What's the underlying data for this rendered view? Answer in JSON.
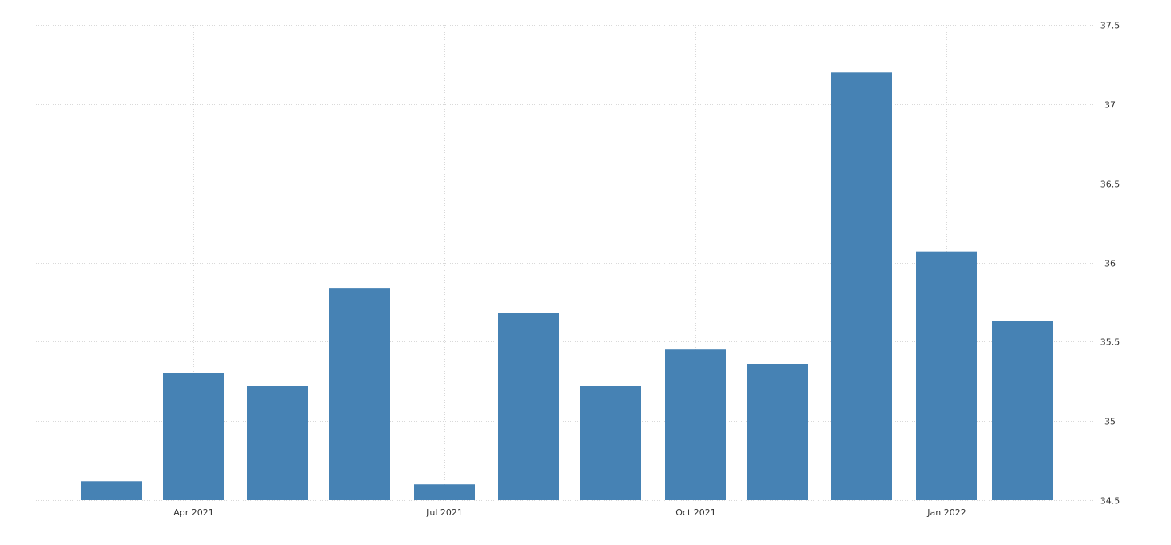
{
  "chart_data": {
    "type": "bar",
    "categories": [
      "2021-03",
      "2021-04",
      "2021-05",
      "2021-06",
      "2021-07",
      "2021-08",
      "2021-09",
      "2021-10",
      "2021-11",
      "2021-12",
      "2022-01",
      "2022-02"
    ],
    "values": [
      34.62,
      35.3,
      35.22,
      35.84,
      34.6,
      35.68,
      35.22,
      35.45,
      35.36,
      37.2,
      36.07,
      35.63
    ],
    "ylim": [
      34.5,
      37.5
    ],
    "y_ticks": [
      "34.5",
      "35",
      "35.5",
      "36",
      "36.5",
      "37",
      "37.5"
    ],
    "x_ticks": [
      "Apr 2021",
      "Jul 2021",
      "Oct 2021",
      "Jan 2022"
    ],
    "x_tick_dates": [
      "2021-04-01",
      "2021-07-01",
      "2021-10-01",
      "2022-01-01"
    ],
    "y_axis_position": "right",
    "grid": true,
    "colors": {
      "bar": "#4682b4",
      "grid": "#d9d9d9",
      "text": "#333333"
    }
  }
}
